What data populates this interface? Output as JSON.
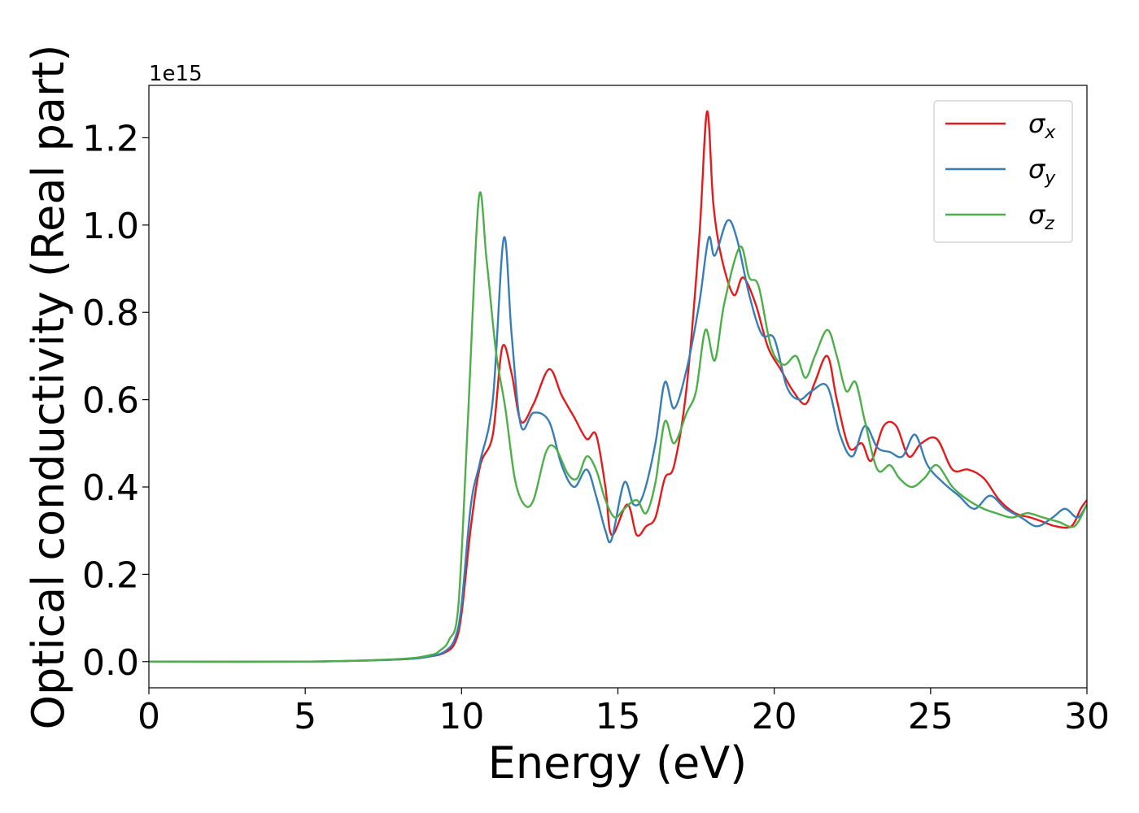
{
  "chart_data": {
    "type": "line",
    "xlabel": "Energy (eV)",
    "ylabel": "Optical conductivity (Real part)",
    "offset_text": "1e15",
    "xlim": [
      0,
      30
    ],
    "ylim": [
      -0.06,
      1.32
    ],
    "xticks": [
      0,
      5,
      10,
      15,
      20,
      25,
      30
    ],
    "yticks": [
      0.0,
      0.2,
      0.4,
      0.6,
      0.8,
      1.0,
      1.2
    ],
    "ytick_labels": [
      "0.0",
      "0.2",
      "0.4",
      "0.6",
      "0.8",
      "1.0",
      "1.2"
    ],
    "grid": false,
    "legend_position": "top-right",
    "series": [
      {
        "name": "σx",
        "legend_base": "σ",
        "legend_sub": "x",
        "color": "#e41a1c",
        "x": [
          0,
          5,
          8,
          9,
          9.5,
          9.8,
          10.0,
          10.3,
          10.6,
          11.0,
          11.3,
          11.6,
          11.9,
          12.3,
          12.8,
          13.2,
          13.6,
          14.0,
          14.3,
          14.6,
          14.8,
          15.3,
          15.6,
          15.9,
          16.2,
          16.5,
          16.8,
          17.2,
          17.6,
          17.85,
          18.05,
          18.3,
          18.7,
          19.0,
          19.4,
          19.8,
          20.2,
          20.6,
          21.0,
          21.3,
          21.7,
          22.0,
          22.4,
          22.8,
          23.1,
          23.5,
          23.9,
          24.3,
          24.7,
          25.2,
          25.7,
          26.2,
          26.7,
          27.2,
          27.7,
          28.2,
          28.6,
          29.0,
          29.5,
          29.8,
          30.0
        ],
        "y": [
          0.0,
          0.0,
          0.005,
          0.012,
          0.022,
          0.045,
          0.11,
          0.31,
          0.45,
          0.52,
          0.72,
          0.66,
          0.55,
          0.59,
          0.67,
          0.61,
          0.56,
          0.51,
          0.52,
          0.4,
          0.29,
          0.36,
          0.29,
          0.31,
          0.33,
          0.42,
          0.45,
          0.63,
          0.97,
          1.26,
          1.05,
          0.93,
          0.84,
          0.88,
          0.82,
          0.72,
          0.67,
          0.62,
          0.59,
          0.64,
          0.7,
          0.6,
          0.49,
          0.5,
          0.46,
          0.54,
          0.54,
          0.47,
          0.5,
          0.51,
          0.44,
          0.44,
          0.42,
          0.37,
          0.34,
          0.33,
          0.32,
          0.31,
          0.31,
          0.35,
          0.37
        ]
      },
      {
        "name": "σy",
        "legend_base": "σ",
        "legend_sub": "y",
        "color": "#377eb8",
        "x": [
          0,
          5,
          8,
          9,
          9.5,
          9.8,
          10.0,
          10.3,
          10.6,
          11.0,
          11.35,
          11.6,
          11.9,
          12.3,
          12.8,
          13.2,
          13.6,
          14.0,
          14.3,
          14.6,
          14.8,
          15.2,
          15.5,
          15.8,
          16.2,
          16.5,
          16.8,
          17.2,
          17.6,
          17.9,
          18.1,
          18.5,
          18.8,
          19.2,
          19.6,
          20.0,
          20.4,
          20.8,
          21.2,
          21.7,
          22.1,
          22.5,
          22.9,
          23.3,
          23.7,
          24.1,
          24.5,
          24.9,
          25.4,
          25.9,
          26.4,
          26.9,
          27.4,
          27.9,
          28.4,
          28.9,
          29.3,
          29.7,
          30.0
        ],
        "y": [
          0.0,
          0.0,
          0.005,
          0.012,
          0.025,
          0.055,
          0.13,
          0.36,
          0.46,
          0.6,
          0.97,
          0.75,
          0.54,
          0.57,
          0.55,
          0.45,
          0.4,
          0.44,
          0.38,
          0.3,
          0.28,
          0.41,
          0.36,
          0.38,
          0.5,
          0.64,
          0.58,
          0.67,
          0.82,
          0.97,
          0.93,
          1.01,
          0.97,
          0.84,
          0.75,
          0.74,
          0.63,
          0.6,
          0.62,
          0.63,
          0.52,
          0.47,
          0.54,
          0.49,
          0.48,
          0.47,
          0.52,
          0.45,
          0.41,
          0.38,
          0.35,
          0.38,
          0.35,
          0.33,
          0.31,
          0.33,
          0.35,
          0.33,
          0.36
        ]
      },
      {
        "name": "σz",
        "legend_base": "σ",
        "legend_sub": "z",
        "color": "#4daf4a",
        "x": [
          0,
          5,
          8,
          9,
          9.3,
          9.6,
          9.9,
          10.2,
          10.55,
          10.8,
          11.1,
          11.4,
          11.7,
          12.0,
          12.3,
          12.7,
          13.0,
          13.4,
          13.7,
          14.0,
          14.3,
          14.6,
          14.9,
          15.2,
          15.6,
          15.9,
          16.2,
          16.5,
          16.8,
          17.2,
          17.5,
          17.8,
          18.1,
          18.4,
          18.9,
          19.2,
          19.5,
          19.9,
          20.3,
          20.7,
          21.0,
          21.3,
          21.7,
          22.0,
          22.3,
          22.6,
          22.9,
          23.3,
          23.7,
          24.0,
          24.4,
          24.8,
          25.2,
          25.7,
          26.2,
          26.7,
          27.1,
          27.6,
          28.1,
          28.6,
          29.1,
          29.6,
          30.0
        ],
        "y": [
          0.0,
          0.0,
          0.006,
          0.015,
          0.025,
          0.05,
          0.13,
          0.55,
          1.06,
          0.92,
          0.71,
          0.58,
          0.42,
          0.36,
          0.37,
          0.48,
          0.49,
          0.43,
          0.42,
          0.47,
          0.44,
          0.37,
          0.33,
          0.35,
          0.37,
          0.34,
          0.41,
          0.55,
          0.5,
          0.57,
          0.62,
          0.76,
          0.69,
          0.82,
          0.95,
          0.88,
          0.86,
          0.72,
          0.68,
          0.7,
          0.65,
          0.7,
          0.76,
          0.7,
          0.62,
          0.64,
          0.55,
          0.44,
          0.45,
          0.42,
          0.4,
          0.42,
          0.45,
          0.4,
          0.37,
          0.35,
          0.34,
          0.33,
          0.34,
          0.33,
          0.32,
          0.31,
          0.36
        ]
      }
    ]
  }
}
